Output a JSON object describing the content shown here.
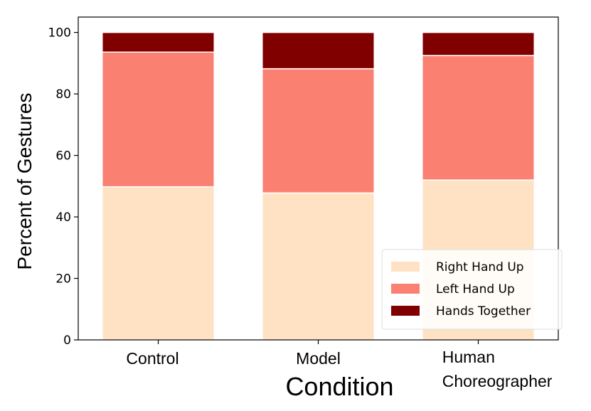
{
  "chart_data": {
    "type": "bar",
    "stacked": true,
    "categories": [
      "Control",
      "Model",
      "Human Choreographer"
    ],
    "series": [
      {
        "name": "Right Hand Up",
        "values": [
          49.8,
          47.8,
          52.0
        ],
        "color": "#fee2c3"
      },
      {
        "name": "Left Hand Up",
        "values": [
          43.8,
          40.4,
          40.5
        ],
        "color": "#fa8072"
      },
      {
        "name": "Hands Together",
        "values": [
          6.4,
          11.8,
          7.5
        ],
        "color": "#800000"
      }
    ],
    "xlabel": "Condition",
    "ylabel": "Percent of Gestures",
    "ylim": [
      0,
      105
    ],
    "yticks": [
      0,
      20,
      40,
      60,
      80,
      100
    ],
    "legend_position": "bottom-right",
    "grid": false
  }
}
